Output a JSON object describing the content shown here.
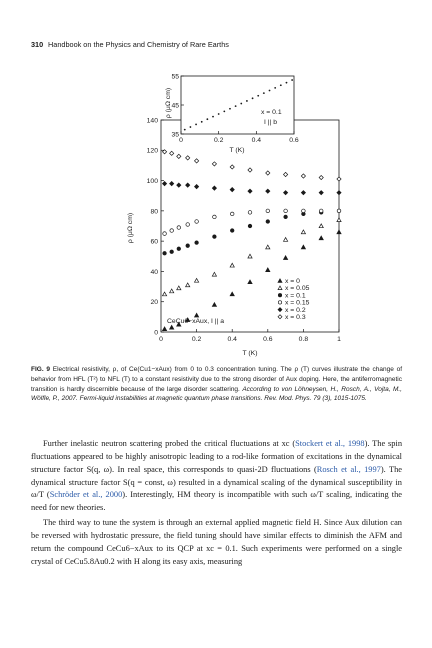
{
  "header": {
    "page_number": "310",
    "title": "Handbook on the Physics and Chemistry of Rare Earths"
  },
  "chart_data": [
    {
      "type": "scatter",
      "title": "",
      "xlabel": "T (K)",
      "ylabel": "ρ (μΩ cm)",
      "xlim": [
        0,
        1
      ],
      "ylim": [
        0,
        140
      ],
      "xticks": [
        "0",
        "0.2",
        "0.4",
        "0.6",
        "0.8",
        "1"
      ],
      "yticks": [
        "0",
        "20",
        "40",
        "60",
        "80",
        "100",
        "120",
        "140"
      ],
      "annotation": "CeCu6−xAux, I || a",
      "legend_placement": "bottom-right",
      "series": [
        {
          "name": "x = 0",
          "marker": "triangle-filled",
          "x": [
            0.02,
            0.06,
            0.1,
            0.15,
            0.2,
            0.3,
            0.4,
            0.5,
            0.6,
            0.7,
            0.8,
            0.9,
            1.0
          ],
          "y": [
            2,
            3,
            5,
            8,
            11,
            18,
            25,
            33,
            41,
            49,
            56,
            62,
            66
          ]
        },
        {
          "name": "x = 0.05",
          "marker": "triangle-open",
          "x": [
            0.02,
            0.06,
            0.1,
            0.15,
            0.2,
            0.3,
            0.4,
            0.5,
            0.6,
            0.7,
            0.8,
            0.9,
            1.0
          ],
          "y": [
            25,
            27,
            29,
            31,
            34,
            38,
            44,
            50,
            56,
            61,
            66,
            70,
            74
          ]
        },
        {
          "name": "x = 0.1",
          "marker": "circle-filled",
          "x": [
            0.02,
            0.06,
            0.1,
            0.15,
            0.2,
            0.3,
            0.4,
            0.5,
            0.6,
            0.7,
            0.8,
            0.9,
            1.0
          ],
          "y": [
            52,
            53,
            55,
            57,
            59,
            63,
            67,
            70,
            73,
            76,
            78,
            79,
            80
          ]
        },
        {
          "name": "x = 0.15",
          "marker": "circle-open",
          "x": [
            0.02,
            0.06,
            0.1,
            0.15,
            0.2,
            0.3,
            0.4,
            0.5,
            0.6,
            0.7,
            0.8,
            0.9,
            1.0
          ],
          "y": [
            65,
            67,
            69,
            71,
            73,
            76,
            78,
            79,
            80,
            80,
            80,
            80,
            80
          ]
        },
        {
          "name": "x = 0.2",
          "marker": "diamond-filled",
          "x": [
            0.02,
            0.06,
            0.1,
            0.15,
            0.2,
            0.3,
            0.4,
            0.5,
            0.6,
            0.7,
            0.8,
            0.9,
            1.0
          ],
          "y": [
            98,
            98,
            97,
            97,
            96,
            95,
            94,
            93,
            93,
            92,
            92,
            92,
            92
          ]
        },
        {
          "name": "x = 0.3",
          "marker": "diamond-open",
          "x": [
            0.02,
            0.06,
            0.1,
            0.15,
            0.2,
            0.3,
            0.4,
            0.5,
            0.6,
            0.7,
            0.8,
            0.9,
            1.0
          ],
          "y": [
            119,
            118,
            116,
            115,
            113,
            111,
            109,
            107,
            105,
            104,
            103,
            102,
            101
          ]
        }
      ]
    },
    {
      "type": "line",
      "title": "",
      "xlabel": "T (K)",
      "ylabel": "ρ (μΩ cm)",
      "xlim": [
        0,
        0.6
      ],
      "ylim": [
        35,
        55
      ],
      "xticks": [
        "0",
        "0.2",
        "0.4",
        "0.6"
      ],
      "yticks": [
        "35",
        "45",
        "55"
      ],
      "annotation_lines": [
        "x = 0.1",
        "I || b"
      ],
      "series": [
        {
          "x": [
            0.02,
            0.05,
            0.08,
            0.11,
            0.14,
            0.17,
            0.2,
            0.23,
            0.26,
            0.29,
            0.32,
            0.35,
            0.38,
            0.41,
            0.44,
            0.47,
            0.5,
            0.53,
            0.56,
            0.59
          ],
          "y": [
            36.5,
            37.4,
            38.3,
            39.2,
            40.1,
            41.0,
            41.9,
            42.8,
            43.7,
            44.6,
            45.5,
            46.4,
            47.3,
            48.2,
            49.1,
            50.0,
            50.9,
            51.8,
            52.7,
            53.6
          ]
        }
      ]
    }
  ],
  "caption": {
    "label": "FIG. 9",
    "text": "Electrical resistivity, ρ, of Ce(Cu1−xAux) from 0 to 0.3 concentration tuning. The ρ (T) curves illustrate the change of behavior from HFL (T²) to NFL (T) to a constant resistivity due to the strong disorder of Aux doping. Here, the antiferromagnetic transition is hardly discernible because of the large disorder scattering.",
    "citation": "According to von Löhneysen, H., Rosch, A., Vojta, M., Wölfle, P., 2007. Fermi-liquid instabilities at magnetic quantum phase transitions. Rev. Mod. Phys. 79 (3), 1015-1075."
  },
  "body": {
    "p1": [
      {
        "t": "Further inelastic neutron scattering probed the critical fluctuations at xc ("
      },
      {
        "t": "Stockert et al., 1998",
        "link": true
      },
      {
        "t": "). The spin fluctuations appeared to be highly anisotropic leading to a rod-like formation of excitations in the dynamical structure factor S(q, ω). In real space, this corresponds to quasi-2D fluctuations ("
      },
      {
        "t": "Rosch et al., 1997",
        "link": true
      },
      {
        "t": "). The dynamical structure factor S(q = const, ω) resulted in a dynamical scaling of the dynamical susceptibility in ω/T ("
      },
      {
        "t": "Schröder et al., 2000",
        "link": true
      },
      {
        "t": "). Interestingly, HM theory is incompatible with such ω/T scaling, indicating the need for new theories."
      }
    ],
    "p2": [
      {
        "t": "The third way to tune the system is through an external applied magnetic field H. Since Aux dilution can be reversed with hydrostatic pressure, the field tuning should have similar effects to diminish the AFM and return the compound CeCu6−xAux to its QCP at xc = 0.1. Such experiments were performed on a single crystal of CeCu5.8Au0.2 with H along its easy axis, measuring"
      }
    ]
  }
}
